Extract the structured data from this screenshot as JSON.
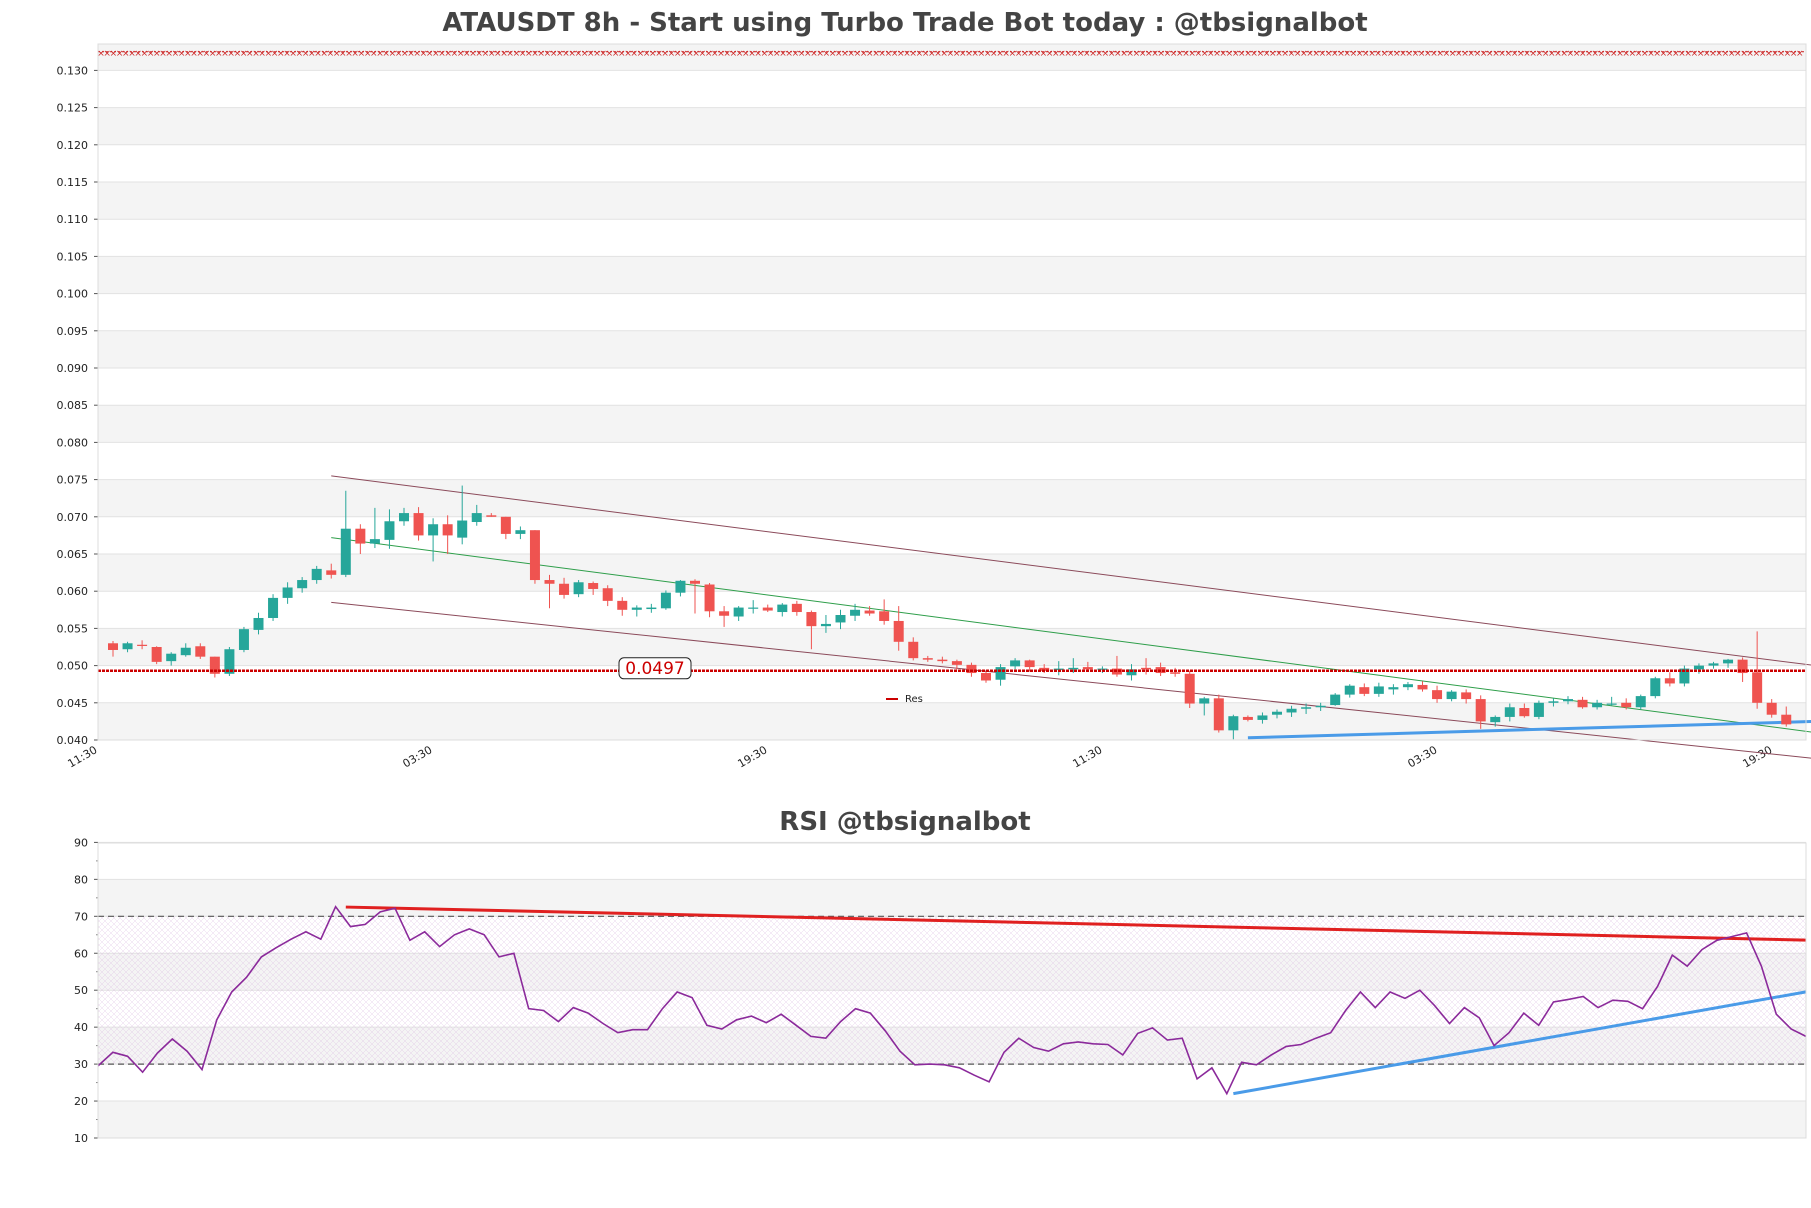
{
  "chart_data": [
    {
      "type": "candlestick",
      "title": "ATAUSDT 8h - Start using Turbo Trade Bot today : @tbsignalbot",
      "ylim": [
        0.04,
        0.1335
      ],
      "y_ticks": [
        "0.040",
        "0.045",
        "0.050",
        "0.055",
        "0.060",
        "0.065",
        "0.070",
        "0.075",
        "0.080",
        "0.085",
        "0.090",
        "0.095",
        "0.100",
        "0.105",
        "0.110",
        "0.115",
        "0.120",
        "0.125",
        "0.130"
      ],
      "x_ticks": [
        "11:30",
        "03:30",
        "19:30",
        "11:30",
        "03:30",
        "19:30"
      ],
      "legend": {
        "label": "Res",
        "color": "#cc0000",
        "placement": "bottom-center"
      },
      "price_label": "0.0497",
      "resistance_level": 0.0493,
      "top_marker_level": 0.1325,
      "colors": {
        "up": "#26a69a",
        "down": "#ef5350",
        "channel": "#8b4a5a",
        "trend": "#2e9e4a",
        "support": "#4a9be8",
        "resistance": "#cc0000"
      },
      "channel_upper": [
        [
          15,
          0.0755
        ],
        [
          117,
          0.05
        ]
      ],
      "channel_lower": [
        [
          15,
          0.0585
        ],
        [
          117,
          0.0375
        ]
      ],
      "trend_line": [
        [
          15,
          0.0672
        ],
        [
          117,
          0.041
        ]
      ],
      "support_line": [
        [
          78,
          0.0403
        ],
        [
          117,
          0.0425
        ]
      ],
      "candles": [
        [
          0.053,
          0.0533,
          0.0512,
          0.0521
        ],
        [
          0.0522,
          0.0532,
          0.0518,
          0.053
        ],
        [
          0.0528,
          0.0534,
          0.0522,
          0.0527
        ],
        [
          0.0525,
          0.0526,
          0.0502,
          0.0505
        ],
        [
          0.0506,
          0.0518,
          0.05,
          0.0516
        ],
        [
          0.0514,
          0.053,
          0.0512,
          0.0524
        ],
        [
          0.0526,
          0.053,
          0.0509,
          0.0512
        ],
        [
          0.0512,
          0.0512,
          0.0484,
          0.0489
        ],
        [
          0.0489,
          0.0525,
          0.0486,
          0.0522
        ],
        [
          0.0521,
          0.0552,
          0.0518,
          0.0549
        ],
        [
          0.0548,
          0.0571,
          0.0542,
          0.0564
        ],
        [
          0.0564,
          0.0596,
          0.056,
          0.0591
        ],
        [
          0.0591,
          0.0612,
          0.0583,
          0.0605
        ],
        [
          0.0604,
          0.0619,
          0.0598,
          0.0615
        ],
        [
          0.0615,
          0.0634,
          0.061,
          0.063
        ],
        [
          0.0628,
          0.0637,
          0.0617,
          0.0622
        ],
        [
          0.0622,
          0.0735,
          0.0619,
          0.0684
        ],
        [
          0.0684,
          0.069,
          0.065,
          0.0664
        ],
        [
          0.0664,
          0.0712,
          0.0658,
          0.067
        ],
        [
          0.0669,
          0.071,
          0.0657,
          0.0694
        ],
        [
          0.0694,
          0.0712,
          0.0688,
          0.0705
        ],
        [
          0.0705,
          0.0713,
          0.0668,
          0.0675
        ],
        [
          0.0675,
          0.0698,
          0.064,
          0.069
        ],
        [
          0.069,
          0.0702,
          0.065,
          0.0675
        ],
        [
          0.0672,
          0.0742,
          0.0663,
          0.0695
        ],
        [
          0.0693,
          0.0716,
          0.0688,
          0.0705
        ],
        [
          0.0702,
          0.0705,
          0.07,
          0.07
        ],
        [
          0.07,
          0.07,
          0.067,
          0.0677
        ],
        [
          0.0677,
          0.0687,
          0.067,
          0.0682
        ],
        [
          0.0682,
          0.0682,
          0.061,
          0.0615
        ],
        [
          0.0615,
          0.0622,
          0.0577,
          0.061
        ],
        [
          0.061,
          0.0618,
          0.059,
          0.0595
        ],
        [
          0.0596,
          0.0615,
          0.0592,
          0.0612
        ],
        [
          0.0611,
          0.0613,
          0.0595,
          0.0603
        ],
        [
          0.0604,
          0.0608,
          0.058,
          0.0587
        ],
        [
          0.0587,
          0.0592,
          0.0567,
          0.0575
        ],
        [
          0.0575,
          0.0581,
          0.0566,
          0.0578
        ],
        [
          0.0576,
          0.0583,
          0.0571,
          0.0578
        ],
        [
          0.0577,
          0.0601,
          0.0575,
          0.0598
        ],
        [
          0.0598,
          0.0615,
          0.0593,
          0.0614
        ],
        [
          0.0614,
          0.0616,
          0.057,
          0.061
        ],
        [
          0.0609,
          0.0611,
          0.0565,
          0.0573
        ],
        [
          0.0573,
          0.058,
          0.0552,
          0.0567
        ],
        [
          0.0566,
          0.058,
          0.056,
          0.0578
        ],
        [
          0.0577,
          0.0588,
          0.057,
          0.0578
        ],
        [
          0.0578,
          0.0582,
          0.0572,
          0.0574
        ],
        [
          0.0572,
          0.0584,
          0.0566,
          0.0582
        ],
        [
          0.0583,
          0.0587,
          0.0567,
          0.0572
        ],
        [
          0.0572,
          0.0574,
          0.0522,
          0.0553
        ],
        [
          0.0553,
          0.0568,
          0.0544,
          0.0556
        ],
        [
          0.0558,
          0.0575,
          0.0549,
          0.0568
        ],
        [
          0.0567,
          0.0583,
          0.056,
          0.0575
        ],
        [
          0.0574,
          0.058,
          0.0567,
          0.057
        ],
        [
          0.0573,
          0.0589,
          0.0555,
          0.056
        ],
        [
          0.056,
          0.058,
          0.052,
          0.0532
        ],
        [
          0.0532,
          0.0538,
          0.0507,
          0.051
        ],
        [
          0.051,
          0.0513,
          0.0505,
          0.0508
        ],
        [
          0.0508,
          0.0512,
          0.0503,
          0.0506
        ],
        [
          0.0506,
          0.0508,
          0.0495,
          0.0501
        ],
        [
          0.0501,
          0.0504,
          0.0485,
          0.049
        ],
        [
          0.049,
          0.0492,
          0.0477,
          0.048
        ],
        [
          0.0481,
          0.0502,
          0.0473,
          0.0498
        ],
        [
          0.0499,
          0.051,
          0.0495,
          0.0507
        ],
        [
          0.0507,
          0.0508,
          0.0492,
          0.0498
        ],
        [
          0.0497,
          0.0502,
          0.049,
          0.0493
        ],
        [
          0.0494,
          0.0506,
          0.0487,
          0.0496
        ],
        [
          0.0495,
          0.051,
          0.049,
          0.0497
        ],
        [
          0.0498,
          0.0505,
          0.0494,
          0.0495
        ],
        [
          0.0495,
          0.0499,
          0.049,
          0.0496
        ],
        [
          0.0496,
          0.0513,
          0.0485,
          0.0488
        ],
        [
          0.0487,
          0.0502,
          0.048,
          0.0495
        ],
        [
          0.0497,
          0.051,
          0.0488,
          0.0495
        ],
        [
          0.0498,
          0.0504,
          0.0486,
          0.049
        ],
        [
          0.0491,
          0.0497,
          0.0485,
          0.0489
        ],
        [
          0.0489,
          0.0493,
          0.0443,
          0.0449
        ],
        [
          0.0449,
          0.0458,
          0.0433,
          0.0456
        ],
        [
          0.0456,
          0.0461,
          0.041,
          0.0413
        ],
        [
          0.0413,
          0.0434,
          0.0401,
          0.0432
        ],
        [
          0.0431,
          0.0433,
          0.0425,
          0.0427
        ],
        [
          0.0427,
          0.0437,
          0.0422,
          0.0433
        ],
        [
          0.0434,
          0.0441,
          0.0429,
          0.0438
        ],
        [
          0.0437,
          0.0446,
          0.0431,
          0.0442
        ],
        [
          0.0442,
          0.0449,
          0.0435,
          0.0444
        ],
        [
          0.0444,
          0.045,
          0.0439,
          0.0446
        ],
        [
          0.0447,
          0.0463,
          0.0446,
          0.0461
        ],
        [
          0.0461,
          0.0475,
          0.0457,
          0.0473
        ],
        [
          0.0471,
          0.0476,
          0.0459,
          0.0462
        ],
        [
          0.0462,
          0.0477,
          0.0458,
          0.0472
        ],
        [
          0.0468,
          0.0475,
          0.0461,
          0.0471
        ],
        [
          0.0471,
          0.0478,
          0.0467,
          0.0475
        ],
        [
          0.0474,
          0.0479,
          0.0465,
          0.0468
        ],
        [
          0.0467,
          0.0473,
          0.045,
          0.0455
        ],
        [
          0.0455,
          0.0467,
          0.0452,
          0.0465
        ],
        [
          0.0464,
          0.0468,
          0.0449,
          0.0455
        ],
        [
          0.0455,
          0.046,
          0.0415,
          0.0425
        ],
        [
          0.0424,
          0.0433,
          0.0418,
          0.0431
        ],
        [
          0.0431,
          0.0449,
          0.0425,
          0.0444
        ],
        [
          0.0443,
          0.0449,
          0.043,
          0.0432
        ],
        [
          0.0431,
          0.0453,
          0.0428,
          0.045
        ],
        [
          0.045,
          0.0456,
          0.0445,
          0.0452
        ],
        [
          0.0452,
          0.0459,
          0.0448,
          0.0455
        ],
        [
          0.0454,
          0.0458,
          0.0442,
          0.0444
        ],
        [
          0.0444,
          0.0454,
          0.0441,
          0.045
        ],
        [
          0.0449,
          0.0458,
          0.0446,
          0.0449
        ],
        [
          0.045,
          0.0456,
          0.0441,
          0.0444
        ],
        [
          0.0444,
          0.0461,
          0.0441,
          0.0459
        ],
        [
          0.0459,
          0.0485,
          0.0456,
          0.0483
        ],
        [
          0.0483,
          0.0491,
          0.0472,
          0.0476
        ],
        [
          0.0476,
          0.05,
          0.0472,
          0.0496
        ],
        [
          0.0495,
          0.0503,
          0.0489,
          0.05
        ],
        [
          0.05,
          0.0505,
          0.0496,
          0.0503
        ],
        [
          0.0503,
          0.0509,
          0.0497,
          0.0508
        ],
        [
          0.0508,
          0.0511,
          0.0478,
          0.049
        ],
        [
          0.0491,
          0.0546,
          0.0442,
          0.045
        ],
        [
          0.045,
          0.0455,
          0.043,
          0.0434
        ],
        [
          0.0434,
          0.0445,
          0.0418,
          0.0421
        ]
      ]
    },
    {
      "type": "line",
      "title": "RSI @tbsignalbot",
      "ylim": [
        10,
        90
      ],
      "y_ticks": [
        "10",
        "20",
        "30",
        "40",
        "50",
        "60",
        "70",
        "80",
        "90"
      ],
      "overbought": 70,
      "oversold": 30,
      "colors": {
        "rsi": "#8b2a9b",
        "resistance": "#e02020",
        "support": "#4a9be8"
      },
      "resistance_line": [
        [
          16,
          72.5
        ],
        [
          117,
          63.5
        ]
      ],
      "support_line": [
        [
          77,
          22
        ],
        [
          117,
          50
        ]
      ],
      "values": [
        29.5,
        33.2,
        32.1,
        27.8,
        33.0,
        36.8,
        33.5,
        28.5,
        42.0,
        49.5,
        53.5,
        59.0,
        61.5,
        63.8,
        65.8,
        63.8,
        72.6,
        67.2,
        67.8,
        71.2,
        72.2,
        63.5,
        65.8,
        61.8,
        65.0,
        66.6,
        65.0,
        59.0,
        60.0,
        45.0,
        44.5,
        41.5,
        45.3,
        43.8,
        41.0,
        38.5,
        39.3,
        39.3,
        45.0,
        49.5,
        48.0,
        40.5,
        39.5,
        42.0,
        43.0,
        41.2,
        43.5,
        40.5,
        37.5,
        37.0,
        41.5,
        45.0,
        43.8,
        39.0,
        33.5,
        29.8,
        30.0,
        29.8,
        29.0,
        27.0,
        25.2,
        33.2,
        37.0,
        34.5,
        33.5,
        35.5,
        36.0,
        35.5,
        35.3,
        32.5,
        38.3,
        39.8,
        36.5,
        37.0,
        26.0,
        29.0,
        22.0,
        30.5,
        29.8,
        32.5,
        34.8,
        35.3,
        37.0,
        38.5,
        44.5,
        49.5,
        45.3,
        49.5,
        47.8,
        50.0,
        45.8,
        41.0,
        45.3,
        42.5,
        35.0,
        38.5,
        43.8,
        40.5,
        46.8,
        47.5,
        48.3,
        45.3,
        47.3,
        47.0,
        45.0,
        51.0,
        59.5,
        56.5,
        61.0,
        63.5,
        64.5,
        65.5,
        56.5,
        43.5,
        39.5,
        37.5
      ]
    }
  ]
}
